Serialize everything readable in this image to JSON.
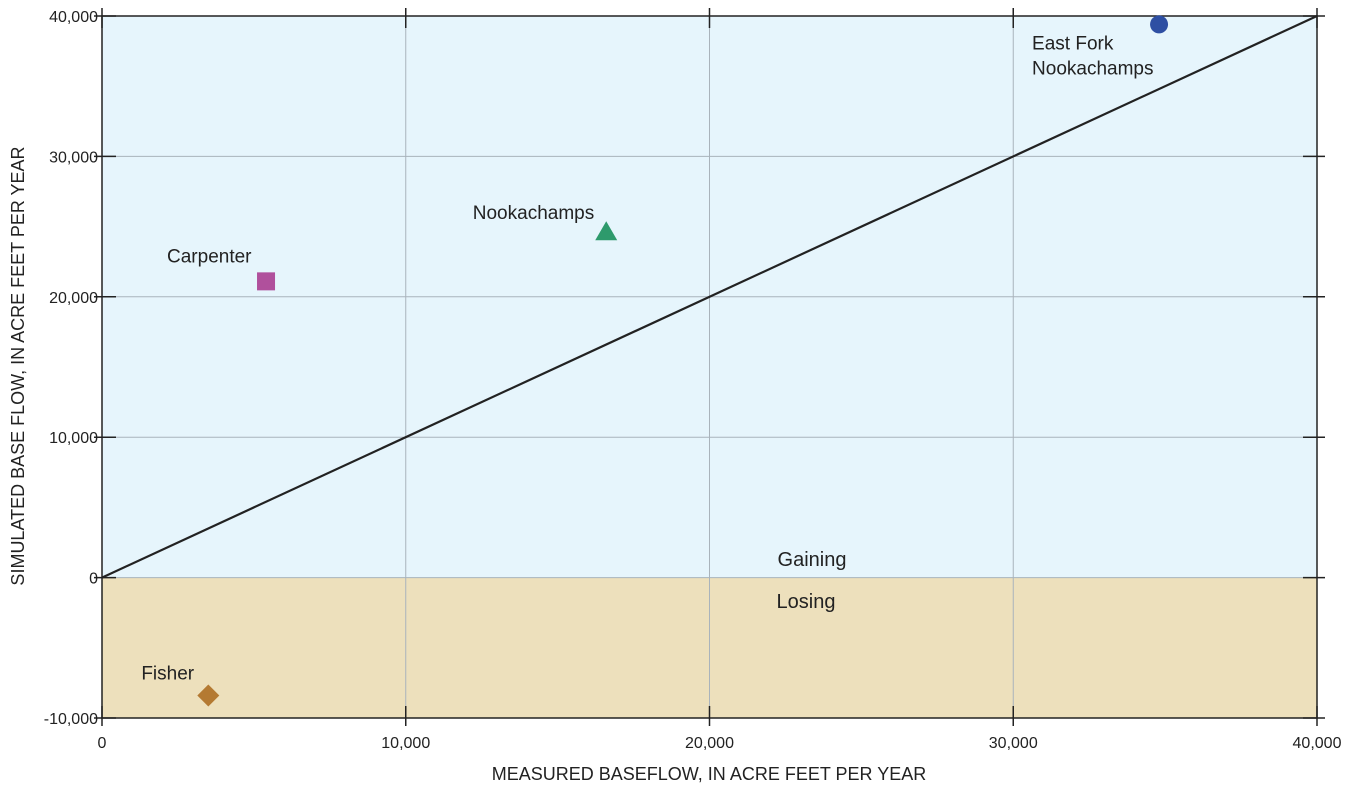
{
  "chart_data": {
    "type": "scatter",
    "title": "",
    "xlabel": "MEASURED BASEFLOW, IN ACRE FEET PER YEAR",
    "ylabel": "SIMULATED BASE FLOW, IN ACRE FEET PER YEAR",
    "xlim": [
      0,
      40000
    ],
    "ylim": [
      -10000,
      40000
    ],
    "x_ticks": [
      0,
      10000,
      20000,
      30000,
      40000
    ],
    "x_tick_labels": [
      "0",
      "10,000",
      "20,000",
      "30,000",
      "40,000"
    ],
    "y_ticks": [
      -10000,
      0,
      10000,
      20000,
      30000,
      40000
    ],
    "y_tick_labels": [
      "-10,000",
      "0",
      "10,000",
      "20,000",
      "30,000",
      "40,000"
    ],
    "grid": true,
    "one_to_one_line": [
      [
        0,
        0
      ],
      [
        40000,
        40000
      ]
    ],
    "regions": [
      {
        "label": "Gaining",
        "y_range": [
          0,
          40000
        ],
        "color": "#e6f5fc"
      },
      {
        "label": "Losing",
        "y_range": [
          -10000,
          0
        ],
        "color": "#ede0bc"
      }
    ],
    "points": [
      {
        "label": "East Fork Nookachamps",
        "label_lines": [
          "East Fork",
          "Nookachamps"
        ],
        "x": 34800,
        "y": 39400,
        "marker": "circle",
        "color": "#2e4fa3"
      },
      {
        "label": "Nookachamps",
        "label_lines": [
          "Nookachamps"
        ],
        "x": 16600,
        "y": 24600,
        "marker": "triangle",
        "color": "#2e9a6c"
      },
      {
        "label": "Carpenter",
        "label_lines": [
          "Carpenter"
        ],
        "x": 5400,
        "y": 21100,
        "marker": "square",
        "color": "#b0509c"
      },
      {
        "label": "Fisher",
        "label_lines": [
          "Fisher"
        ],
        "x": 3500,
        "y": -8400,
        "marker": "diamond",
        "color": "#b47a32"
      }
    ]
  }
}
